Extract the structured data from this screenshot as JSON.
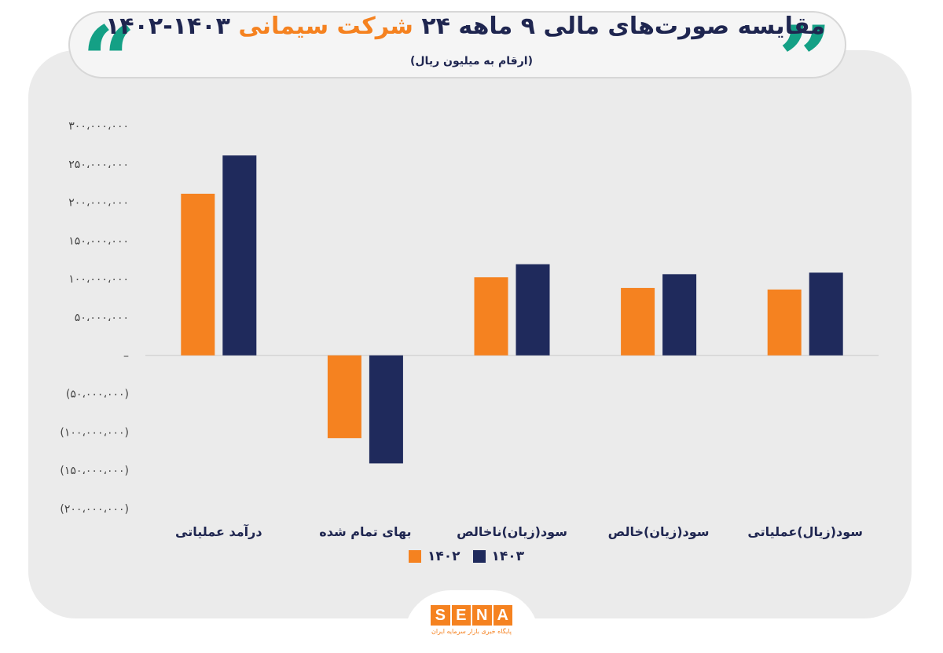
{
  "header": {
    "title_part1": "مقایسه صورت‌های مالی ۹ ماهه ۲۴ ",
    "title_accent": "شرکت سیمانی ",
    "title_part2": "۱۴۰۳-۱۴۰۲",
    "subtitle": "(ارقام به میلیون ریال)",
    "quote_open": "“",
    "quote_close": "”"
  },
  "logo": {
    "letters": [
      "S",
      "E",
      "N",
      "A"
    ],
    "tagline": "پایگاه خبری بازار سرمایه ایران"
  },
  "colors": {
    "series_1402": "#f58220",
    "series_1403": "#1f2a5c",
    "accent_green": "#14a085",
    "title_navy": "#1f2650"
  },
  "chart_data": {
    "type": "bar",
    "categories": [
      "درآمد عملیاتی",
      "بهای تمام شده",
      "سود(زیان)ناخالص",
      "سود(زیان)خالص",
      "سود(زیال)عملیاتی"
    ],
    "series": [
      {
        "name": "۱۴۰۲",
        "color": "#f58220",
        "values": [
          211000000,
          -108000000,
          102000000,
          88000000,
          86000000
        ]
      },
      {
        "name": "۱۴۰۳",
        "color": "#1f2a5c",
        "values": [
          261000000,
          -141000000,
          119000000,
          106000000,
          108000000
        ]
      }
    ],
    "ylim": [
      -200000000,
      300000000
    ],
    "yticks": [
      300000000,
      250000000,
      200000000,
      150000000,
      100000000,
      50000000,
      0,
      -50000000,
      -100000000,
      -150000000,
      -200000000
    ],
    "ytick_labels": [
      "۳۰۰،۰۰۰،۰۰۰",
      "۲۵۰،۰۰۰،۰۰۰",
      "۲۰۰،۰۰۰،۰۰۰",
      "۱۵۰،۰۰۰،۰۰۰",
      "۱۰۰،۰۰۰،۰۰۰",
      "۵۰،۰۰۰،۰۰۰",
      "–",
      "(۵۰،۰۰۰،۰۰۰)",
      "(۱۰۰،۰۰۰،۰۰۰)",
      "(۱۵۰،۰۰۰،۰۰۰)",
      "(۲۰۰،۰۰۰،۰۰۰)"
    ],
    "legend": [
      {
        "label": "۱۴۰۲",
        "color": "#f58220"
      },
      {
        "label": "۱۴۰۳",
        "color": "#1f2a5c"
      }
    ],
    "legend_position": "bottom",
    "grid": false
  }
}
